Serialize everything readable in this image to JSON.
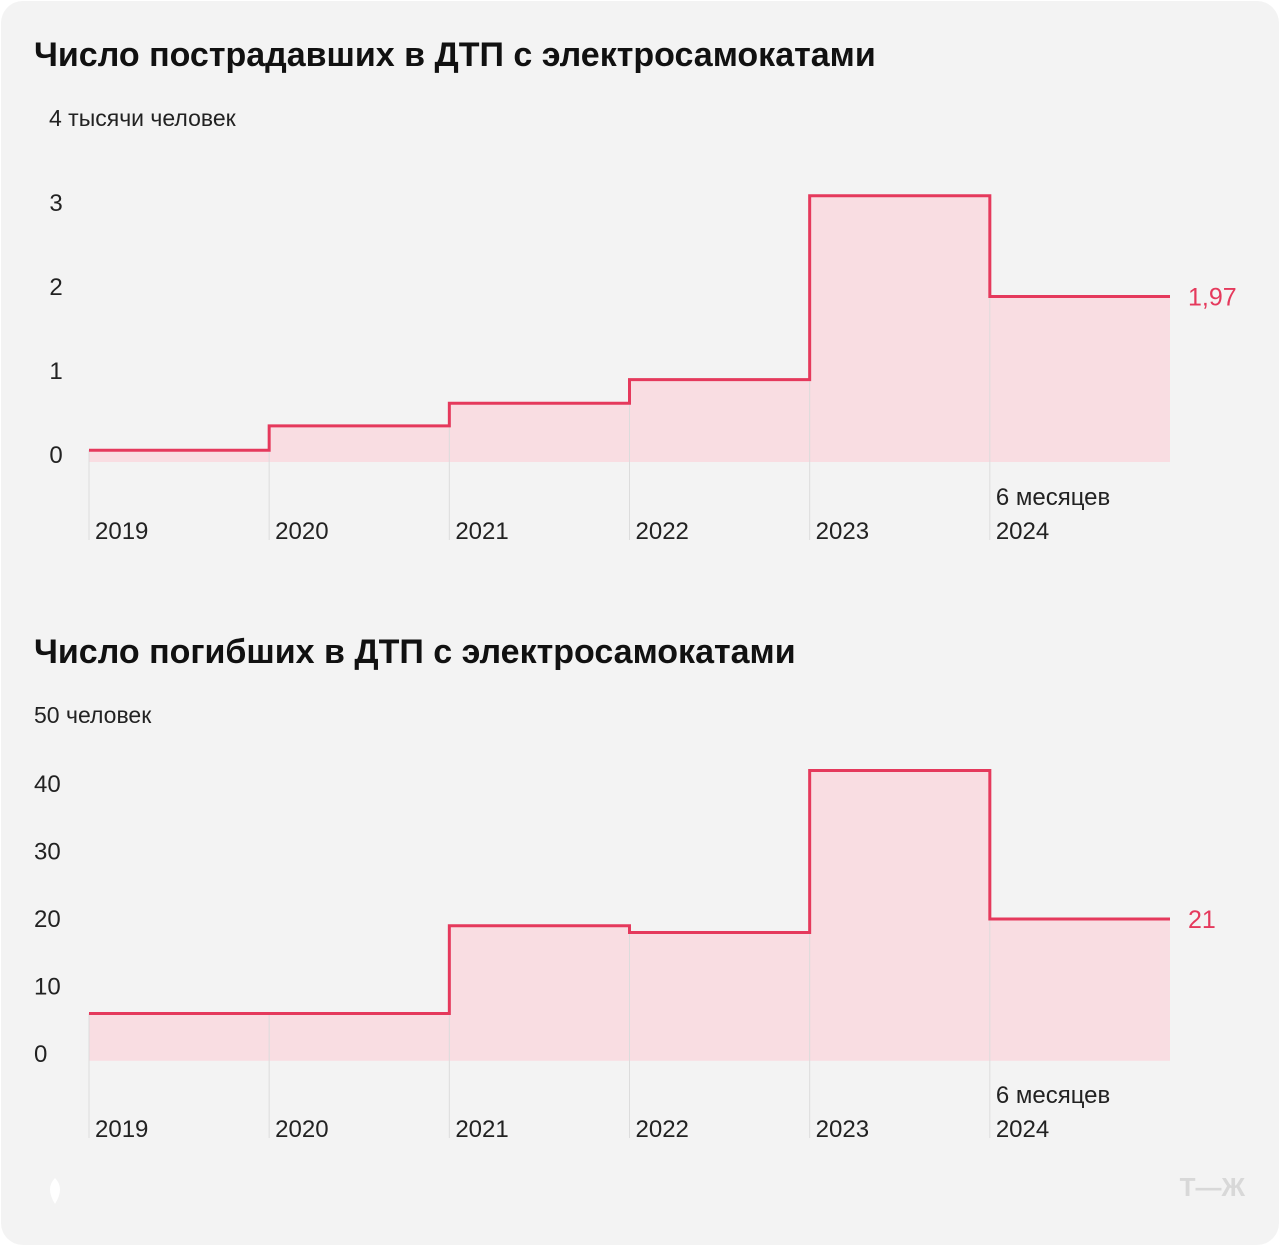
{
  "colors": {
    "line": "#e5395c",
    "fill": "#f9dde2",
    "grid": "#dcdcdc",
    "background": "#f3f3f3",
    "logo": "#d8d8d8"
  },
  "logo_text": "Т—Ж",
  "chart_data": [
    {
      "type": "step-area",
      "title": "Число пострадавших в ДТП с электросамокатами",
      "unit_label": "4 тысячи человек",
      "categories": [
        "2019",
        "2020",
        "2021",
        "2022",
        "2023",
        "2024"
      ],
      "category_notes": [
        "",
        "",
        "",
        "",
        "",
        "6 месяцев"
      ],
      "values": [
        0.14,
        0.43,
        0.7,
        0.98,
        3.17,
        1.97
      ],
      "ylim": [
        0,
        4
      ],
      "yticks": [
        "0",
        "1",
        "2",
        "3"
      ],
      "last_value_label": "1,97",
      "grid": "vertical"
    },
    {
      "type": "step-area",
      "title": "Число погибших в ДТП с электросамокатами",
      "unit_label": "50 человек",
      "categories": [
        "2019",
        "2020",
        "2021",
        "2022",
        "2023",
        "2024"
      ],
      "category_notes": [
        "",
        "",
        "",
        "",
        "",
        "6 месяцев"
      ],
      "values": [
        7,
        7,
        20,
        19,
        43,
        21
      ],
      "ylim": [
        0,
        50
      ],
      "yticks": [
        "0",
        "10",
        "20",
        "30",
        "40"
      ],
      "last_value_label": "21",
      "grid": "vertical"
    }
  ]
}
